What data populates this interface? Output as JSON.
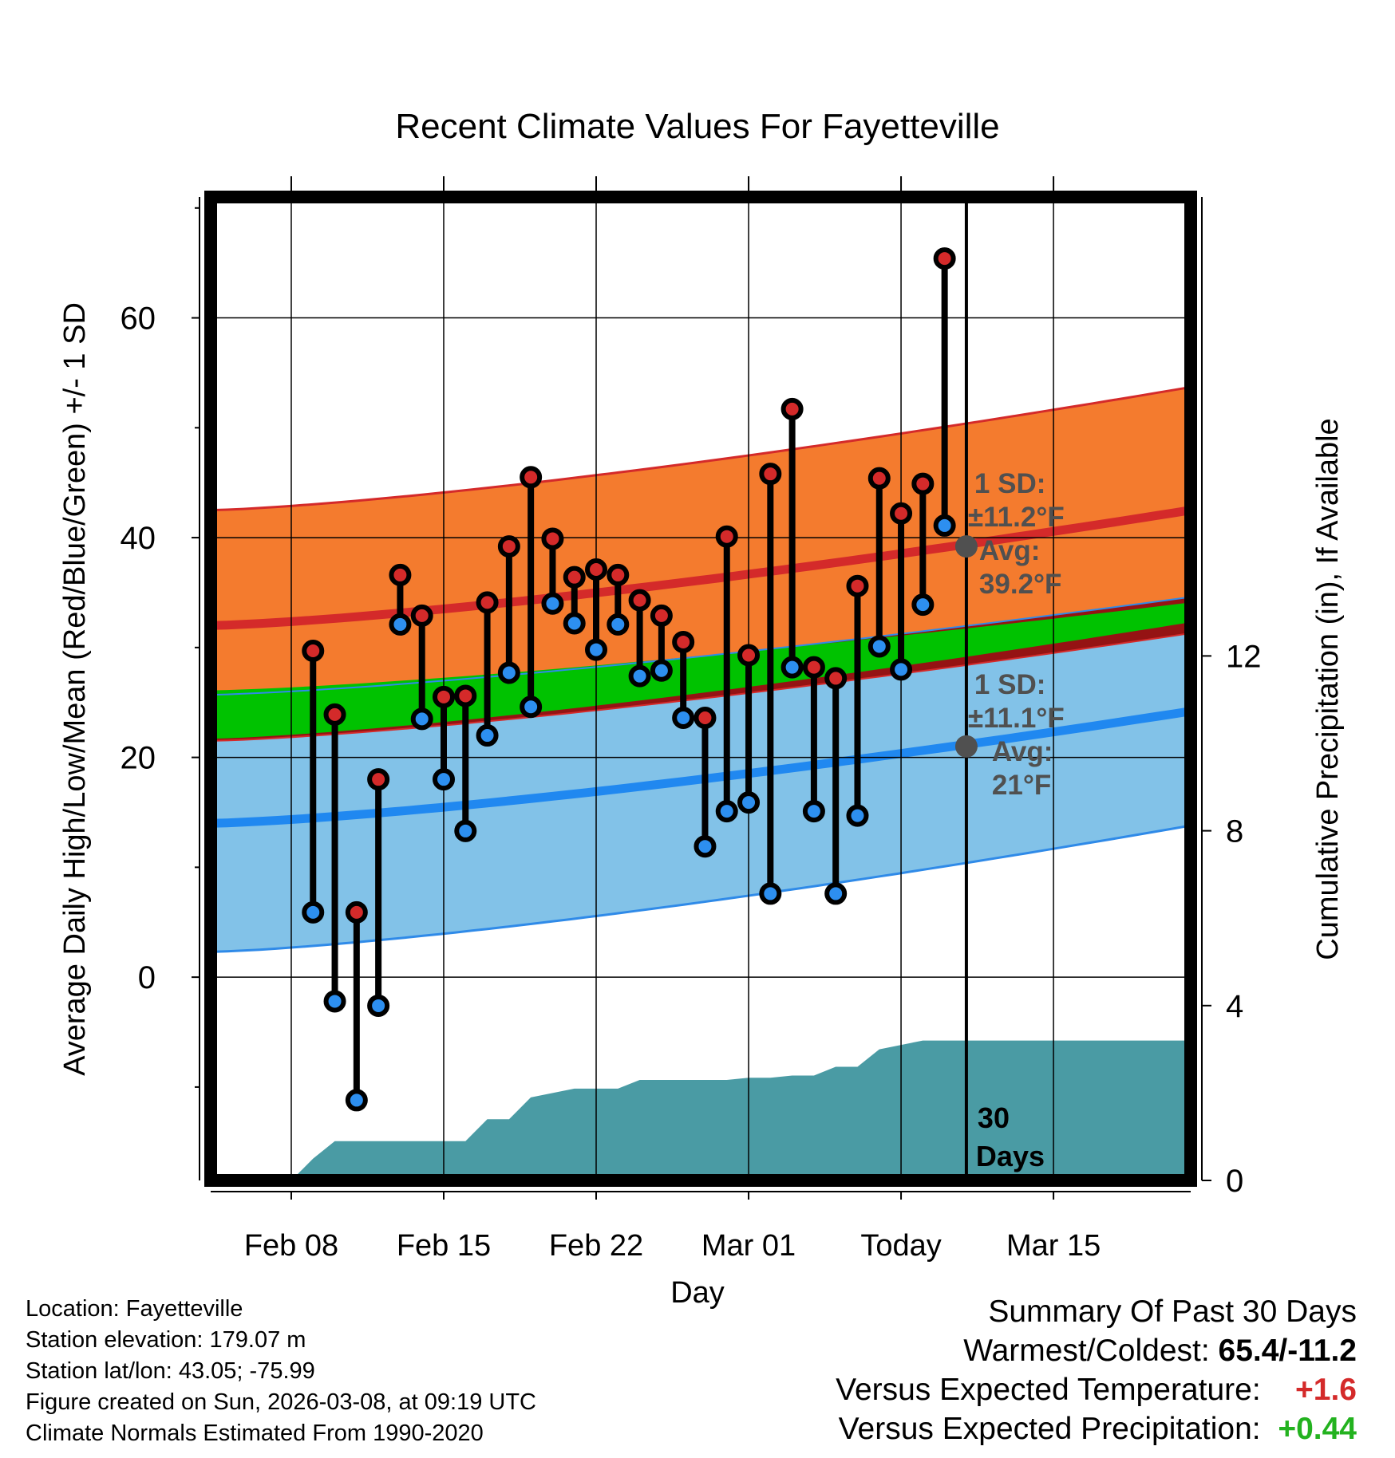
{
  "chart_data": {
    "type": "line",
    "title": "Recent Climate Values For Fayetteville",
    "xlabel": "Day",
    "ylabel": "Average Daily High/Low/Mean (Red/Blue/Green) +/- 1 SD",
    "y2label": "Cumulative Precipitation (in), If Available",
    "ylim": [
      -18.5,
      71
    ],
    "y2lim": [
      0,
      22.5
    ],
    "xlim": [
      -34.7,
      10.3
    ],
    "x_ticks": [
      {
        "day": -31,
        "label": "Feb 08"
      },
      {
        "day": -24,
        "label": "Feb 15"
      },
      {
        "day": -17,
        "label": "Feb 22"
      },
      {
        "day": -10,
        "label": "Mar 01"
      },
      {
        "day": -3,
        "label": "Today"
      },
      {
        "day": 4,
        "label": "Mar 15"
      }
    ],
    "y_ticks": [
      0,
      20,
      40,
      60
    ],
    "y_minor_ticks": [
      -10,
      10,
      30,
      50,
      70
    ],
    "y2_ticks": [
      0,
      4,
      8,
      12
    ],
    "today_day": 0,
    "days": [
      -30,
      -29,
      -28,
      -27,
      -26,
      -25,
      -24,
      -23,
      -22,
      -21,
      -20,
      -19,
      -18,
      -17,
      -16,
      -15,
      -14,
      -13,
      -12,
      -11,
      -10,
      -9,
      -8,
      -7,
      -6,
      -5,
      -4,
      -3,
      -2,
      -1
    ],
    "highs": [
      29.7,
      23.9,
      5.9,
      18.0,
      36.6,
      32.9,
      25.5,
      25.6,
      34.1,
      39.2,
      45.5,
      39.9,
      36.4,
      37.1,
      36.6,
      34.3,
      32.9,
      30.5,
      23.6,
      40.1,
      29.3,
      45.8,
      51.7,
      28.2,
      27.2,
      35.6,
      45.4,
      42.2,
      44.9,
      65.4
    ],
    "lows": [
      5.9,
      -2.2,
      -11.2,
      -2.6,
      32.1,
      23.5,
      18.0,
      13.3,
      22.0,
      27.7,
      24.6,
      34.0,
      32.2,
      29.8,
      32.1,
      27.4,
      27.9,
      23.6,
      11.9,
      15.1,
      15.9,
      7.6,
      28.2,
      15.1,
      7.6,
      14.7,
      30.1,
      28.0,
      33.9,
      41.1
    ],
    "normals": {
      "day_start": -34.7,
      "day_end": 10.3,
      "high_mean": [
        32.0,
        42.5
      ],
      "high_sd": [
        10.5,
        11.2
      ],
      "low_mean": [
        14.0,
        24.2
      ],
      "low_sd": [
        11.7,
        10.4
      ],
      "mean_mean": [
        23.9,
        33.2
      ],
      "mean_sd": [
        2.2,
        0.9
      ]
    },
    "precip_cumulative": {
      "days": [
        -31,
        -30,
        -29,
        -28,
        -27,
        -26,
        -25,
        -24,
        -23,
        -22,
        -21,
        -20,
        -19,
        -18,
        -17,
        -16,
        -15,
        -14,
        -13,
        -12,
        -11,
        -10,
        -9,
        -8,
        -7,
        -6,
        -5,
        -4,
        -3,
        -2,
        -1,
        0,
        10.3
      ],
      "values": [
        0,
        0.5,
        0.9,
        0.9,
        0.9,
        0.9,
        0.9,
        0.9,
        0.9,
        1.4,
        1.4,
        1.9,
        2.0,
        2.1,
        2.1,
        2.1,
        2.3,
        2.3,
        2.3,
        2.3,
        2.3,
        2.35,
        2.35,
        2.4,
        2.4,
        2.6,
        2.6,
        3.0,
        3.1,
        3.2,
        3.2,
        3.2,
        3.2
      ],
      "label_value": "30",
      "label_unit": "Days"
    },
    "annotations": {
      "high": {
        "sd_label": "1 SD:",
        "sd_value": "±11.2°F",
        "avg_label": "Avg:",
        "avg_value": "39.2°F",
        "avg": 39.2
      },
      "low": {
        "sd_label": "1 SD:",
        "sd_value": "±11.1°F",
        "avg_label": "Avg:",
        "avg_value": "21°F",
        "avg": 21.0
      }
    }
  },
  "colors": {
    "high_band": "#f47b2e",
    "high_band_edge": "#d42a2a",
    "high_line": "#d42a2a",
    "low_band": "#82c2e8",
    "low_band_edge": "#2f8ae8",
    "low_line": "#2088f0",
    "mean_band": "#00c200",
    "overlap_band": "#951313",
    "precip": "#4a9ba4",
    "marker_high": "#d42a2a",
    "marker_low": "#2d8ff0",
    "annotation": "#505050"
  },
  "footer": {
    "location": "Location: Fayetteville",
    "elevation": "Station elevation: 179.07 m",
    "latlon": "Station lat/lon: 43.05; -75.99",
    "created": "Figure created on Sun, 2026-03-08, at 09:19 UTC",
    "normals": "Climate Normals Estimated From 1990-2020"
  },
  "summary": {
    "title": "Summary Of Past 30 Days",
    "warm_label": "Warmest/Coldest: ",
    "warm_value": "65.4/-11.2",
    "temp_label": "Versus Expected Temperature:",
    "temp_value": "+1.6",
    "precip_label": "Versus Expected Precipitation:",
    "precip_value": "+0.44"
  }
}
